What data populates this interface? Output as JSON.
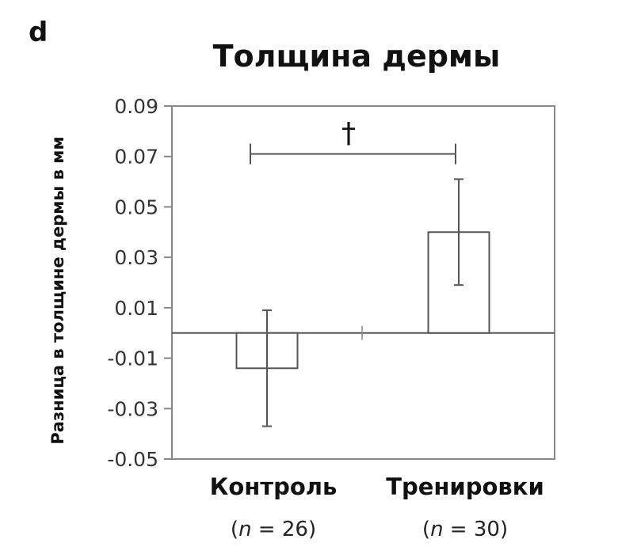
{
  "panel_label": "d",
  "chart_data": {
    "type": "bar",
    "title": "Толщина дермы",
    "ylabel": "Разница в толщине дермы в мм",
    "xlabel": "",
    "ylim": [
      -0.05,
      0.09
    ],
    "yticks": [
      "0.09",
      "0.07",
      "0.05",
      "0.03",
      "0.01",
      "-0.01",
      "-0.03",
      "-0.05"
    ],
    "ytick_values": [
      0.09,
      0.07,
      0.05,
      0.03,
      0.01,
      -0.01,
      -0.03,
      -0.05
    ],
    "grid": false,
    "categories": [
      "Контроль",
      "Тренировки"
    ],
    "category_n": [
      {
        "prefix": "(",
        "var": "n",
        "rest": " = 26)"
      },
      {
        "prefix": "(",
        "var": "n",
        "rest": " = 30)"
      }
    ],
    "values": [
      -0.014,
      0.04
    ],
    "error_upper": [
      0.009,
      0.061
    ],
    "error_lower": [
      -0.037,
      0.019
    ],
    "significance": {
      "symbol": "†",
      "between": [
        "Контроль",
        "Тренировки"
      ],
      "level": 0.071
    },
    "colors": {
      "bar_fill": "#ffffff",
      "stroke": "#555555",
      "axis": "#888888"
    }
  }
}
